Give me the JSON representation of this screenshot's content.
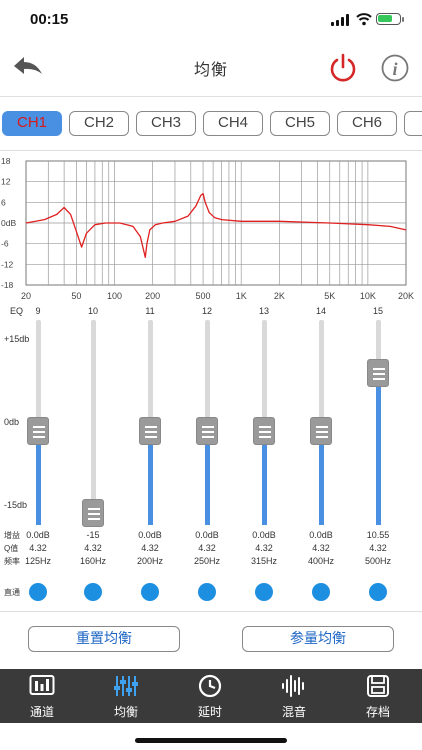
{
  "status": {
    "time": "00:15"
  },
  "nav": {
    "title": "均衡"
  },
  "channels": [
    "CH1",
    "CH2",
    "CH3",
    "CH4",
    "CH5",
    "CH6"
  ],
  "active_channel": "CH1",
  "chart_data": {
    "type": "line",
    "xscale": "log",
    "xlim": [
      20,
      20000
    ],
    "ylim": [
      -18,
      18
    ],
    "yticks": [
      "18",
      "12",
      "6",
      "0dB",
      "-6",
      "-12",
      "-18"
    ],
    "xticks": [
      "20",
      "50",
      "100",
      "200",
      "500",
      "1K",
      "2K",
      "5K",
      "10K",
      "20K"
    ],
    "series": [
      {
        "color": "#e02020",
        "x": [
          20,
          28,
          35,
          40,
          45,
          50,
          55,
          60,
          70,
          85,
          110,
          140,
          160,
          170,
          175,
          180,
          190,
          210,
          240,
          300,
          380,
          440,
          480,
          500,
          520,
          560,
          620,
          700,
          1000,
          2000,
          5000,
          10000,
          15000,
          20000
        ],
        "y": [
          0,
          1,
          2.5,
          4.5,
          2.5,
          -2.5,
          -7,
          -3,
          -0.5,
          0,
          0,
          -1,
          -4,
          -8,
          -10,
          -6,
          -2,
          -0.5,
          0,
          0.5,
          2,
          5,
          8,
          8.5,
          6,
          3,
          1.5,
          1,
          0.5,
          0.5,
          0,
          -0.5,
          -1,
          -2
        ]
      }
    ]
  },
  "eq_label": "EQ",
  "y_labels": {
    "top": "+15db",
    "mid": "0db",
    "bottom": "-15db"
  },
  "row_labels": {
    "gain": "增益",
    "q": "Q值",
    "freq": "频率",
    "bypass": "直通"
  },
  "bands": [
    {
      "num": "9",
      "gain": "0.0dB",
      "q": "4.32",
      "freq": "125Hz",
      "level": 0
    },
    {
      "num": "10",
      "gain": "-15",
      "q": "4.32",
      "freq": "160Hz",
      "level": -15
    },
    {
      "num": "11",
      "gain": "0.0dB",
      "q": "4.32",
      "freq": "200Hz",
      "level": 0
    },
    {
      "num": "12",
      "gain": "0.0dB",
      "q": "4.32",
      "freq": "250Hz",
      "level": 0
    },
    {
      "num": "13",
      "gain": "0.0dB",
      "q": "4.32",
      "freq": "315Hz",
      "level": 0
    },
    {
      "num": "14",
      "gain": "0.0dB",
      "q": "4.32",
      "freq": "400Hz",
      "level": 0
    },
    {
      "num": "15",
      "gain": "10.55",
      "q": "4.32",
      "freq": "500Hz",
      "level": 10.55
    }
  ],
  "buttons": {
    "reset": "重置均衡",
    "param": "参量均衡"
  },
  "tabbar": [
    {
      "label": "通道",
      "icon": "channel-icon"
    },
    {
      "label": "均衡",
      "icon": "equalizer-icon"
    },
    {
      "label": "延时",
      "icon": "clock-icon"
    },
    {
      "label": "混音",
      "icon": "waveform-icon"
    },
    {
      "label": "存档",
      "icon": "save-icon"
    }
  ],
  "colors": {
    "accent": "#1d8fe1",
    "curve": "#e02020",
    "power": "#d42626",
    "tabbar": "#3a3a3a"
  }
}
